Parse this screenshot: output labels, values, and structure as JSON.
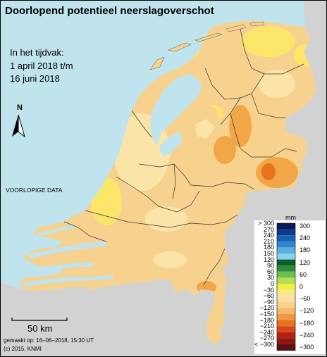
{
  "title": "Doorlopend potentieel neerslagoverschot",
  "period": {
    "label": "In het tijdvak:",
    "start": "1 april 2018 t/m",
    "end": "16 juni 2018"
  },
  "north_arrow": {
    "letter": "N",
    "icon": "north-arrow-icon"
  },
  "preliminary_note": "VOORLOPIGE DATA",
  "scale_bar": {
    "label": "50 km",
    "icon": "scale-bar-icon"
  },
  "footer": {
    "made_on": "gemaakt op: 16–06–2018, 15:30 UT",
    "copyright": "(c) 2015, KNMI"
  },
  "colors": {
    "sea": "#bfe4ee",
    "neighbor_land": "#d2d2d2",
    "base_land": "#f7d28f",
    "lighter_land": "#fbe4a8",
    "yellow_land": "#fbe66a",
    "dark_orange": "#f1a648",
    "hotspot": "#e8731e"
  },
  "legend": {
    "unit": "mm",
    "left_labels": [
      "> 300",
      "270",
      "240",
      "210",
      "180",
      "150",
      "120",
      "90",
      "60",
      "30",
      "0",
      "−30",
      "−60",
      "−90",
      "−120",
      "−150",
      "−180",
      "−210",
      "−240",
      "−270",
      "< −300"
    ],
    "right_labels": [
      "300",
      "240",
      "180",
      "120",
      "60",
      "0",
      "−60",
      "−120",
      "−180",
      "−240",
      "−300"
    ],
    "colors": [
      "#081d58",
      "#0a3a8c",
      "#1261b5",
      "#2c86d0",
      "#5aaee0",
      "#8ad0ec",
      "#0b5f2c",
      "#2e8b3d",
      "#6cbf4a",
      "#b2dc5a",
      "#f2ef3a",
      "#f9e88c",
      "#fbe0a6",
      "#f9cf8a",
      "#f6b867",
      "#f19a45",
      "#e67322",
      "#d6481a",
      "#b42114",
      "#8a1812",
      "#5a1010"
    ]
  }
}
